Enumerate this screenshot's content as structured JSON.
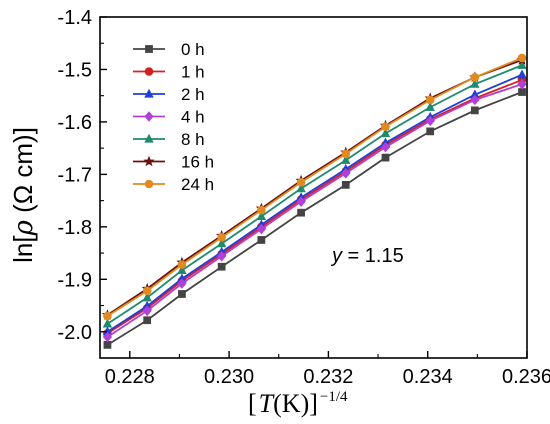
{
  "chart_data": {
    "type": "line",
    "xlabel": "[T(K)]",
    "xlabel_parts": {
      "open": "[",
      "var": "T",
      "unit": "(K)]",
      "exp": "−1/4"
    },
    "ylabel": "ln[ρ (Ω cm)]",
    "ylabel_parts": {
      "prefix": "ln[",
      "var": "ρ",
      "unit": " (Ω cm)]"
    },
    "xlim": [
      0.2274,
      0.236
    ],
    "ylim": [
      -2.05,
      -1.4
    ],
    "xticks": [
      0.228,
      0.23,
      0.232,
      0.234,
      0.236
    ],
    "xtick_labels": [
      "0.228",
      "0.230",
      "0.232",
      "0.234",
      "0.236"
    ],
    "yticks": [
      -2.0,
      -1.9,
      -1.8,
      -1.7,
      -1.6,
      -1.5,
      -1.4
    ],
    "ytick_labels": [
      "-2.0",
      "-1.9",
      "-1.8",
      "-1.7",
      "-1.6",
      "-1.5",
      "-1.4"
    ],
    "grid": false,
    "legend_position": "top-left",
    "annotation": {
      "var": "y",
      "text": " = 1.15"
    },
    "x": [
      0.22755,
      0.22835,
      0.22905,
      0.22985,
      0.23065,
      0.23145,
      0.23235,
      0.23315,
      0.23405,
      0.23495,
      0.2359
    ],
    "series": [
      {
        "name": "0 h",
        "color": "#444444",
        "marker": "square",
        "values": [
          -2.025,
          -1.978,
          -1.928,
          -1.876,
          -1.825,
          -1.773,
          -1.72,
          -1.668,
          -1.618,
          -1.578,
          -1.543
        ]
      },
      {
        "name": "1 h",
        "color": "#d42020",
        "marker": "circle",
        "values": [
          -2.003,
          -1.955,
          -1.903,
          -1.852,
          -1.8,
          -1.748,
          -1.694,
          -1.644,
          -1.595,
          -1.555,
          -1.52
        ]
      },
      {
        "name": "2 h",
        "color": "#1f3fd8",
        "marker": "triangle",
        "values": [
          -2.0,
          -1.951,
          -1.899,
          -1.848,
          -1.796,
          -1.744,
          -1.69,
          -1.64,
          -1.591,
          -1.548,
          -1.51
        ]
      },
      {
        "name": "4 h",
        "color": "#b040d8",
        "marker": "diamond",
        "values": [
          -2.01,
          -1.96,
          -1.908,
          -1.856,
          -1.804,
          -1.752,
          -1.698,
          -1.648,
          -1.598,
          -1.558,
          -1.528
        ]
      },
      {
        "name": "8 h",
        "color": "#1e8a6e",
        "marker": "triangle",
        "values": [
          -1.985,
          -1.935,
          -1.883,
          -1.832,
          -1.78,
          -1.727,
          -1.673,
          -1.622,
          -1.572,
          -1.528,
          -1.492
        ]
      },
      {
        "name": "16 h",
        "color": "#6b1010",
        "marker": "star",
        "values": [
          -1.968,
          -1.918,
          -1.868,
          -1.817,
          -1.765,
          -1.712,
          -1.658,
          -1.607,
          -1.555,
          -1.515,
          -1.482
        ]
      },
      {
        "name": "24 h",
        "color": "#e08a20",
        "marker": "circle",
        "values": [
          -1.97,
          -1.922,
          -1.872,
          -1.82,
          -1.768,
          -1.715,
          -1.661,
          -1.609,
          -1.558,
          -1.515,
          -1.478
        ]
      }
    ]
  }
}
